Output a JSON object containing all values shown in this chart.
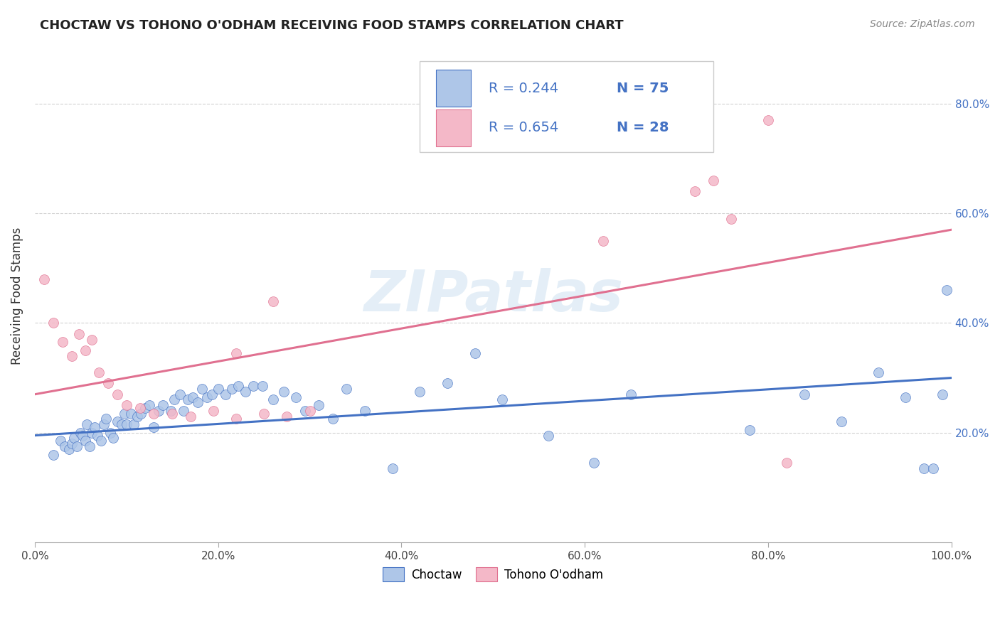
{
  "title": "CHOCTAW VS TOHONO O'ODHAM RECEIVING FOOD STAMPS CORRELATION CHART",
  "source": "Source: ZipAtlas.com",
  "ylabel": "Receiving Food Stamps",
  "xlim": [
    0.0,
    1.0
  ],
  "ylim": [
    0.0,
    0.9
  ],
  "xticks": [
    0.0,
    0.2,
    0.4,
    0.6,
    0.8,
    1.0
  ],
  "yticks": [
    0.2,
    0.4,
    0.6,
    0.8
  ],
  "xticklabels": [
    "0.0%",
    "20.0%",
    "40.0%",
    "60.0%",
    "80.0%",
    "100.0%"
  ],
  "yticklabels_right": [
    "20.0%",
    "40.0%",
    "60.0%",
    "80.0%"
  ],
  "watermark": "ZIPatlas",
  "legend_r1": "R = 0.244",
  "legend_n1": "N = 75",
  "legend_r2": "R = 0.654",
  "legend_n2": "N = 28",
  "choctaw_color": "#aec6e8",
  "tohono_color": "#f4b8c8",
  "line1_color": "#4472c4",
  "line2_color": "#e07090",
  "background_color": "#ffffff",
  "choctaw_x": [
    0.02,
    0.028,
    0.033,
    0.037,
    0.04,
    0.043,
    0.046,
    0.05,
    0.052,
    0.055,
    0.057,
    0.06,
    0.062,
    0.065,
    0.068,
    0.072,
    0.075,
    0.078,
    0.082,
    0.085,
    0.09,
    0.095,
    0.098,
    0.1,
    0.105,
    0.108,
    0.112,
    0.116,
    0.12,
    0.125,
    0.13,
    0.135,
    0.14,
    0.148,
    0.152,
    0.158,
    0.162,
    0.167,
    0.172,
    0.178,
    0.182,
    0.188,
    0.193,
    0.2,
    0.208,
    0.215,
    0.222,
    0.23,
    0.238,
    0.248,
    0.26,
    0.272,
    0.285,
    0.295,
    0.31,
    0.325,
    0.34,
    0.36,
    0.39,
    0.42,
    0.45,
    0.48,
    0.51,
    0.56,
    0.61,
    0.65,
    0.78,
    0.84,
    0.88,
    0.92,
    0.95,
    0.97,
    0.98,
    0.99,
    0.995
  ],
  "choctaw_y": [
    0.16,
    0.185,
    0.175,
    0.17,
    0.18,
    0.19,
    0.175,
    0.2,
    0.195,
    0.185,
    0.215,
    0.175,
    0.2,
    0.21,
    0.195,
    0.185,
    0.215,
    0.225,
    0.2,
    0.19,
    0.22,
    0.215,
    0.235,
    0.215,
    0.235,
    0.215,
    0.23,
    0.235,
    0.245,
    0.25,
    0.21,
    0.24,
    0.25,
    0.24,
    0.26,
    0.27,
    0.24,
    0.26,
    0.265,
    0.255,
    0.28,
    0.265,
    0.27,
    0.28,
    0.27,
    0.28,
    0.285,
    0.275,
    0.285,
    0.285,
    0.26,
    0.275,
    0.265,
    0.24,
    0.25,
    0.225,
    0.28,
    0.24,
    0.135,
    0.275,
    0.29,
    0.345,
    0.26,
    0.195,
    0.145,
    0.27,
    0.205,
    0.27,
    0.22,
    0.31,
    0.265,
    0.135,
    0.135,
    0.27,
    0.46
  ],
  "tohono_x": [
    0.01,
    0.02,
    0.03,
    0.04,
    0.048,
    0.055,
    0.062,
    0.07,
    0.08,
    0.09,
    0.1,
    0.115,
    0.13,
    0.15,
    0.17,
    0.195,
    0.22,
    0.25,
    0.275,
    0.26,
    0.3,
    0.22,
    0.62,
    0.72,
    0.74,
    0.76,
    0.8,
    0.82
  ],
  "tohono_y": [
    0.48,
    0.4,
    0.365,
    0.34,
    0.38,
    0.35,
    0.37,
    0.31,
    0.29,
    0.27,
    0.25,
    0.245,
    0.235,
    0.235,
    0.23,
    0.24,
    0.225,
    0.235,
    0.23,
    0.44,
    0.24,
    0.345,
    0.55,
    0.64,
    0.66,
    0.59,
    0.77,
    0.145
  ],
  "choctaw_line_x": [
    0.0,
    1.0
  ],
  "choctaw_line_y": [
    0.195,
    0.3
  ],
  "tohono_line_x": [
    0.0,
    1.0
  ],
  "tohono_line_y": [
    0.27,
    0.57
  ]
}
